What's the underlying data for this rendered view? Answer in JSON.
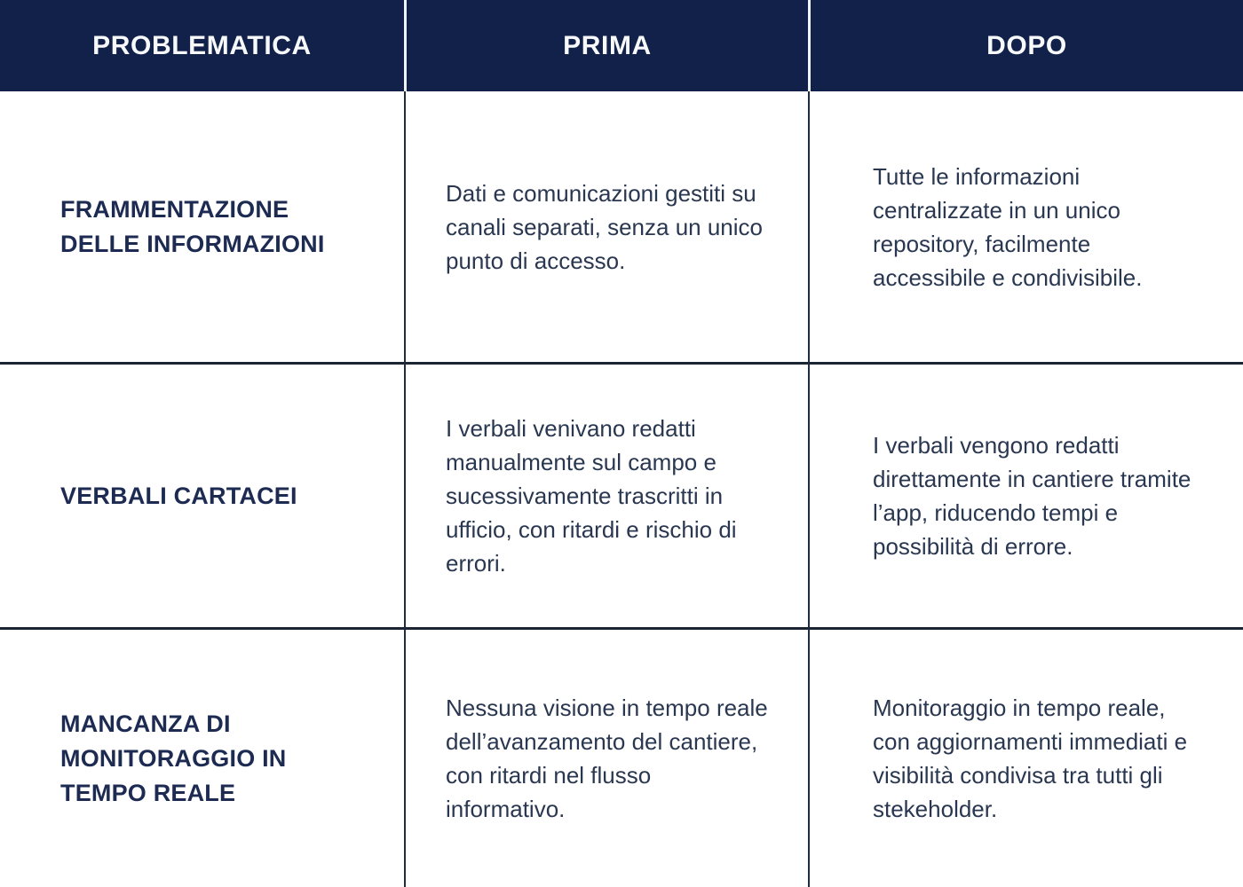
{
  "colors": {
    "header_background": "#12214a",
    "header_text": "#f7f9fb",
    "header_divider": "#eef3f6",
    "label_text": "#1d2b52",
    "body_text": "#2a3750",
    "grid_line_vertical": "#1f2c44",
    "grid_line_horizontal": "#1b2432",
    "page_background": "#ffffff"
  },
  "table": {
    "columns": [
      {
        "label": "PROBLEMATICA"
      },
      {
        "label": "PRIMA"
      },
      {
        "label": "DOPO"
      }
    ],
    "rows": [
      {
        "problematica": "FRAMMENTAZIONE DELLE INFORMAZIONI",
        "prima": "Dati e comunicazioni gestiti su canali separati, senza un unico punto di accesso.",
        "dopo": "Tutte le informazioni centralizzate in un unico repository, facilmente accessibile e condivisibile."
      },
      {
        "problematica": "VERBALI CARTACEI",
        "prima": "I verbali venivano redatti manualmente sul campo e sucessivamente trascritti in ufficio, con ritardi e rischio di errori.",
        "dopo": "I verbali vengono redatti direttamente in cantiere tramite l’app, riducendo tempi e possibilità di errore."
      },
      {
        "problematica": "MANCANZA DI MONITORAGGIO IN TEMPO REALE",
        "prima": "Nessuna visione in tempo reale dell’avanzamento del cantiere, con ritardi nel flusso informativo.",
        "dopo": "Monitoraggio in tempo reale, con aggiornamenti immediati e visibilità condivisa tra tutti gli stekeholder."
      }
    ]
  }
}
